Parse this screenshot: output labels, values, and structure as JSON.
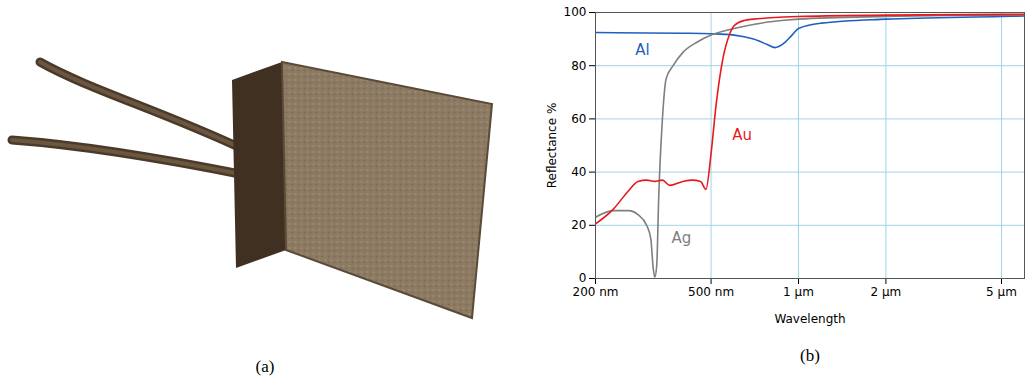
{
  "panel_labels": [
    "(a)",
    "(b)"
  ],
  "chart_data": {
    "type": "line",
    "xlabel": "Wavelength",
    "ylabel": "Reflectance %",
    "log": "x",
    "grid": true,
    "xlim": [
      200,
      6000
    ],
    "xticks": [
      {
        "value": 200,
        "label": "200 nm"
      },
      {
        "value": 500,
        "label": "500 nm"
      },
      {
        "value": 1000,
        "label": "1 µm"
      },
      {
        "value": 2000,
        "label": "2 µm"
      },
      {
        "value": 5000,
        "label": "5 µm"
      }
    ],
    "ylim": [
      0,
      100
    ],
    "yticks": [
      0,
      20,
      40,
      60,
      80,
      100
    ],
    "series": [
      {
        "name": "Al",
        "color": "#1f5fbf",
        "x": [
          200,
          300,
          400,
          500,
          600,
          700,
          780,
          830,
          880,
          950,
          1000,
          1200,
          2000,
          5000,
          6000
        ],
        "values": [
          92.5,
          92.3,
          92.2,
          92.0,
          91.5,
          90.0,
          88.0,
          86.8,
          88.0,
          91.5,
          94.0,
          96.0,
          97.5,
          98.5,
          98.7
        ]
      },
      {
        "name": "Ag",
        "color": "#7f7f7f",
        "x": [
          200,
          230,
          260,
          280,
          300,
          310,
          316,
          320,
          325,
          330,
          340,
          350,
          370,
          400,
          450,
          500,
          600,
          800,
          1000,
          2000,
          5000,
          6000
        ],
        "values": [
          23,
          25.5,
          25.5,
          24,
          20,
          15,
          4,
          0.5,
          5,
          30,
          60,
          75,
          80,
          85,
          89,
          91.5,
          94,
          96.5,
          97.5,
          98.5,
          99,
          99
        ]
      },
      {
        "name": "Au",
        "color": "#e8191c",
        "x": [
          200,
          230,
          260,
          280,
          300,
          320,
          340,
          360,
          400,
          430,
          460,
          480,
          500,
          520,
          550,
          580,
          600,
          650,
          700,
          800,
          1000,
          2000,
          5000,
          6000
        ],
        "values": [
          20.5,
          26,
          33,
          36.5,
          37,
          36.5,
          37,
          35,
          36.5,
          37,
          36.5,
          33.5,
          47,
          65,
          83,
          92,
          95,
          97,
          97.5,
          98,
          98.5,
          99,
          99.3,
          99.3
        ]
      }
    ],
    "annotations": [
      {
        "text": "Al",
        "x": 290,
        "y": 86
      },
      {
        "text": "Au",
        "x": 640,
        "y": 54
      },
      {
        "text": "Ag",
        "x": 395,
        "y": 15
      }
    ]
  }
}
